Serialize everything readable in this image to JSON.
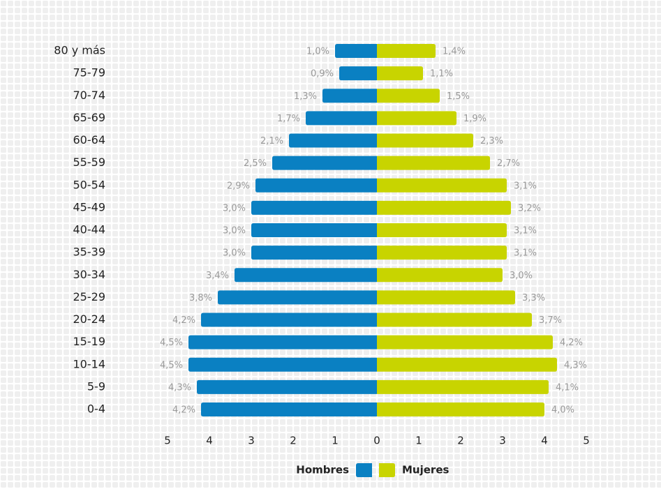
{
  "chart_data": {
    "type": "pyramid",
    "categories": [
      "80 y más",
      "75-79",
      "70-74",
      "65-69",
      "60-64",
      "55-59",
      "50-54",
      "45-49",
      "40-44",
      "35-39",
      "30-34",
      "25-29",
      "20-24",
      "15-19",
      "10-14",
      "5-9",
      "0-4"
    ],
    "series": [
      {
        "name": "Hombres",
        "color": "#0a80c2",
        "side": "left",
        "values": [
          1.0,
          0.9,
          1.3,
          1.7,
          2.1,
          2.5,
          2.9,
          3.0,
          3.0,
          3.0,
          3.4,
          3.8,
          4.2,
          4.5,
          4.5,
          4.3,
          4.2
        ],
        "value_labels": [
          "1,0%",
          "0,9%",
          "1,3%",
          "1,7%",
          "2,1%",
          "2,5%",
          "2,9%",
          "3,0%",
          "3,0%",
          "3,0%",
          "3,4%",
          "3,8%",
          "4,2%",
          "4,5%",
          "4,5%",
          "4,3%",
          "4,2%"
        ]
      },
      {
        "name": "Mujeres",
        "color": "#c8d400",
        "side": "right",
        "values": [
          1.4,
          1.1,
          1.5,
          1.9,
          2.3,
          2.7,
          3.1,
          3.2,
          3.1,
          3.1,
          3.0,
          3.3,
          3.7,
          4.2,
          4.3,
          4.1,
          4.0
        ],
        "value_labels": [
          "1,4%",
          "1,1%",
          "1,5%",
          "1,9%",
          "2,3%",
          "2,7%",
          "3,1%",
          "3,2%",
          "3,1%",
          "3,1%",
          "3,0%",
          "3,3%",
          "3,7%",
          "4,2%",
          "4,3%",
          "4,1%",
          "4,0%"
        ]
      }
    ],
    "xlim": [
      -5,
      5
    ],
    "xticks": [
      {
        "value": -5,
        "label": "5"
      },
      {
        "value": -4,
        "label": "4"
      },
      {
        "value": -3,
        "label": "3"
      },
      {
        "value": -2,
        "label": "2"
      },
      {
        "value": -1,
        "label": "1"
      },
      0,
      1,
      2,
      3,
      4,
      5
    ],
    "legend": "bottom"
  }
}
